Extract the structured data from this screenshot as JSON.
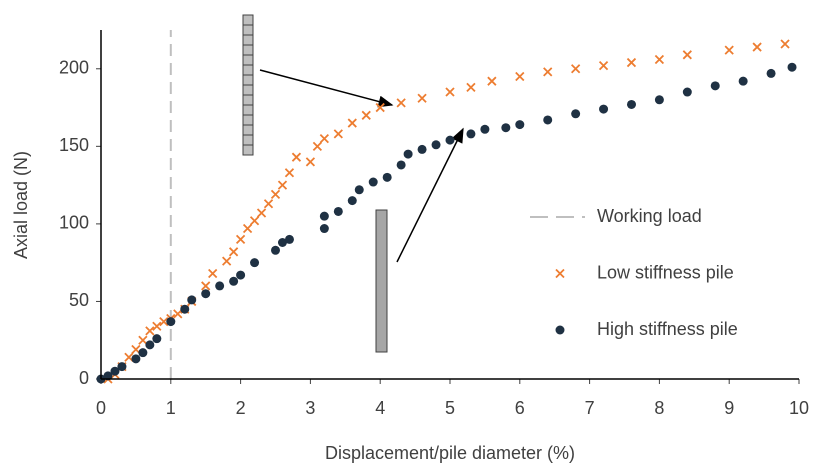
{
  "chart_data": {
    "type": "scatter",
    "x_label": "Displacement/pile  diameter (%)",
    "y_label": "Axial load (N)",
    "xlim": [
      0,
      10
    ],
    "xticks": [
      0,
      1,
      2,
      3,
      4,
      5,
      6,
      7,
      8,
      9,
      10
    ],
    "ylim": [
      0,
      225
    ],
    "yticks": [
      0,
      50,
      100,
      150,
      200
    ],
    "legend": "right",
    "series": [
      {
        "name": "Working load",
        "color": "#bfbfbf",
        "marker": "dashed-line",
        "x": [
          1,
          1
        ],
        "values": [
          0,
          225
        ]
      },
      {
        "name": "Low stiffness pile",
        "color": "#ed7d31",
        "marker": "x",
        "x": [
          0.1,
          0.2,
          0.3,
          0.4,
          0.5,
          0.6,
          0.7,
          0.8,
          0.9,
          1.0,
          1.1,
          1.2,
          1.3,
          1.5,
          1.6,
          1.8,
          1.9,
          2.0,
          2.1,
          2.2,
          2.3,
          2.4,
          2.5,
          2.6,
          2.7,
          2.8,
          3.0,
          3.1,
          3.2,
          3.4,
          3.6,
          3.8,
          4.0,
          4.3,
          4.6,
          5.0,
          5.3,
          5.6,
          6.0,
          6.4,
          6.8,
          7.2,
          7.6,
          8.0,
          8.4,
          9.0,
          9.4,
          9.8
        ],
        "values": [
          0,
          3,
          8,
          14,
          19,
          25,
          31,
          34,
          37,
          39,
          42,
          45,
          50,
          60,
          68,
          76,
          82,
          90,
          97,
          102,
          107,
          113,
          119,
          125,
          133,
          143,
          140,
          150,
          155,
          158,
          165,
          170,
          175,
          178,
          181,
          185,
          188,
          192,
          195,
          198,
          200,
          202,
          204,
          206,
          209,
          212,
          214,
          216
        ]
      },
      {
        "name": "High stiffness pile",
        "color": "#1f3143",
        "marker": "circle",
        "x": [
          0,
          0.1,
          0.2,
          0.3,
          0.5,
          0.6,
          0.7,
          0.8,
          1.0,
          1.2,
          1.3,
          1.5,
          1.7,
          1.9,
          2.0,
          2.2,
          2.5,
          2.6,
          2.7,
          3.2,
          3.2,
          3.4,
          3.6,
          3.7,
          3.9,
          4.1,
          4.3,
          4.4,
          4.6,
          4.8,
          5.0,
          5.3,
          5.5,
          5.8,
          6.0,
          6.4,
          6.8,
          7.2,
          7.6,
          8.0,
          8.4,
          8.8,
          9.2,
          9.6,
          9.9
        ],
        "values": [
          0,
          2,
          5,
          8,
          13,
          17,
          22,
          26,
          37,
          45,
          51,
          55,
          60,
          63,
          67,
          75,
          83,
          88,
          90,
          97,
          105,
          108,
          115,
          122,
          127,
          130,
          138,
          145,
          148,
          151,
          154,
          158,
          161,
          162,
          164,
          167,
          171,
          174,
          177,
          180,
          185,
          189,
          192,
          197,
          201
        ]
      }
    ]
  }
}
